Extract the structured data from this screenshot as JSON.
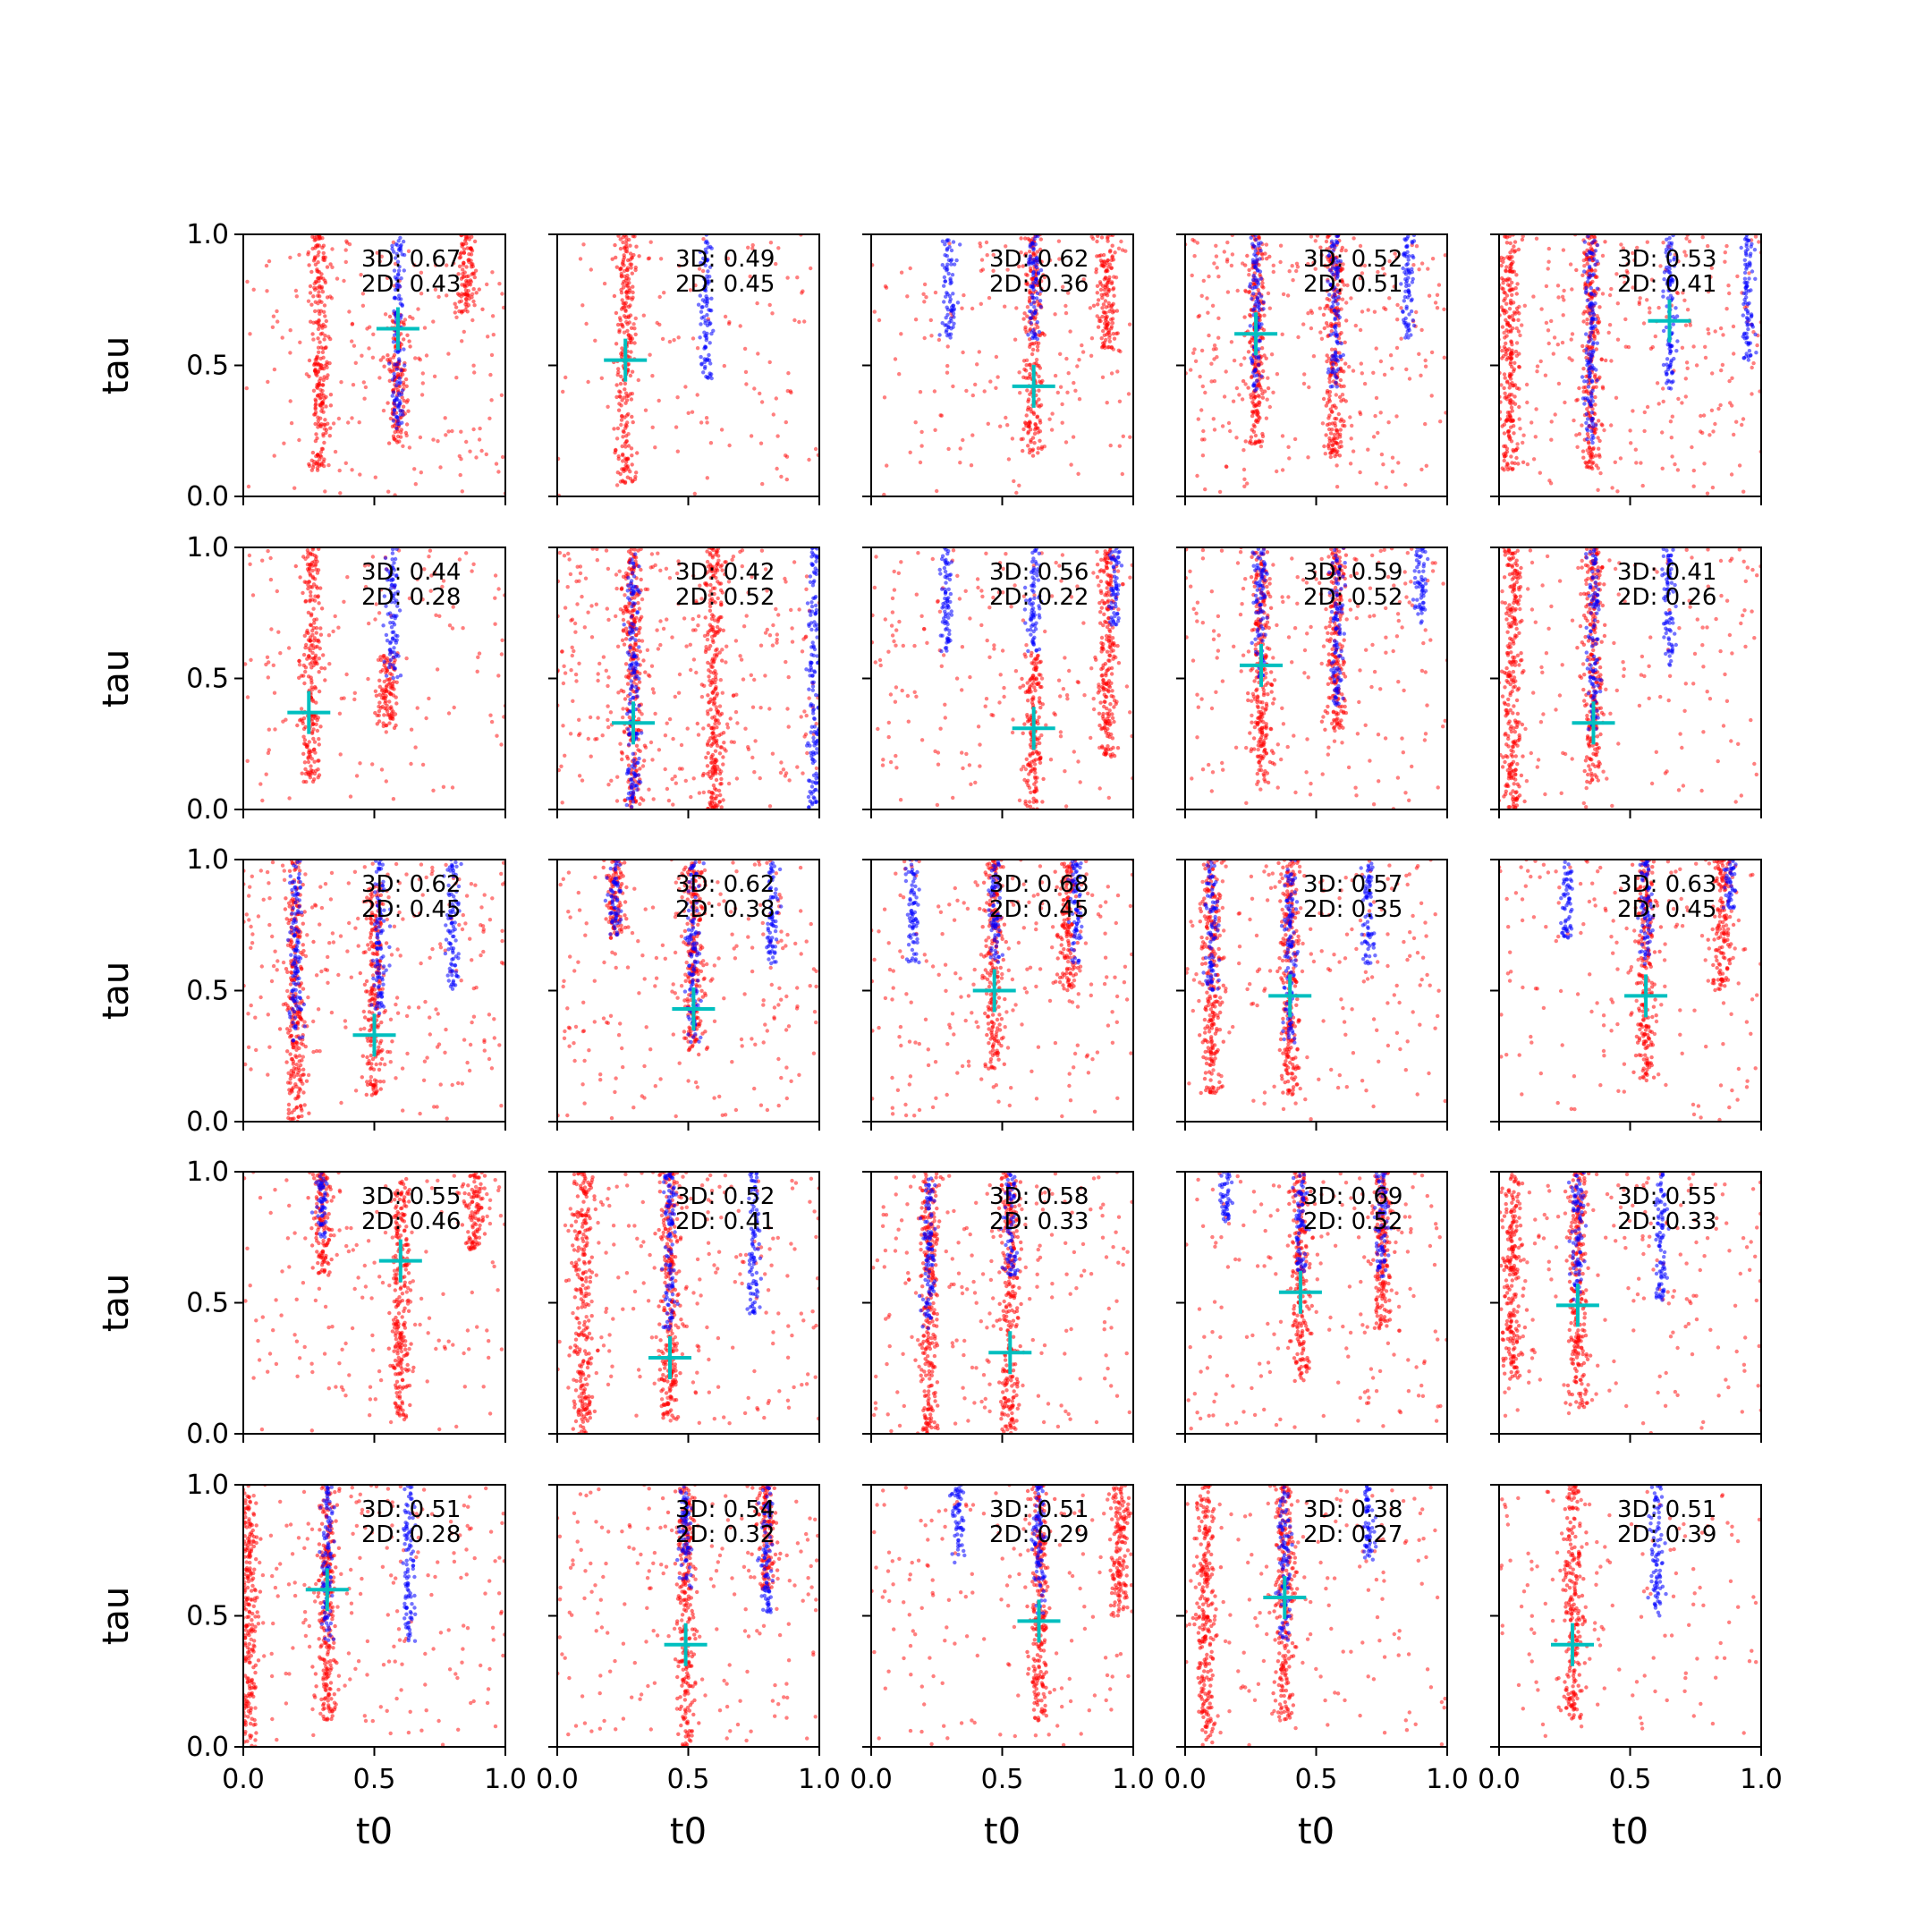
{
  "colors": {
    "background": "#ffffff",
    "axes": "#000000",
    "series_red": "#ff0000",
    "series_blue": "#0000ff",
    "marker": "#00bfbf"
  },
  "chart_data": {
    "type": "scatter",
    "layout": "5x5 grid of small-multiple scatter panels with shared axes",
    "xlabel": "t0",
    "ylabel": "tau",
    "xlim": [
      0,
      1
    ],
    "ylim": [
      0,
      1
    ],
    "xticks": [
      "0.0",
      "0.5",
      "1.0"
    ],
    "yticks": [
      "0.0",
      "0.5",
      "1.0"
    ],
    "grid": false,
    "legend": "none",
    "series_colors": [
      "#ff0000",
      "#0000ff"
    ],
    "marker_color": "#00bfbf",
    "marker_style": "plus",
    "panels": [
      {
        "row": 0,
        "col": 0,
        "score_3d": "3D: 0.67",
        "score_2d": "2D: 0.43",
        "marker": [
          0.59,
          0.64
        ],
        "red_bands": [
          {
            "x": 0.29,
            "ymin": 0.1,
            "ymax": 1.0
          },
          {
            "x": 0.59,
            "ymin": 0.2,
            "ymax": 0.7
          },
          {
            "x": 0.85,
            "ymin": 0.7,
            "ymax": 1.0
          }
        ],
        "blue_bands": [
          {
            "x": 0.59,
            "ymin": 0.25,
            "ymax": 1.0
          }
        ],
        "red_scatter": 0.5
      },
      {
        "row": 0,
        "col": 1,
        "score_3d": "3D: 0.49",
        "score_2d": "2D: 0.45",
        "marker": [
          0.26,
          0.52
        ],
        "red_bands": [
          {
            "x": 0.26,
            "ymin": 0.05,
            "ymax": 1.0
          }
        ],
        "blue_bands": [
          {
            "x": 0.57,
            "ymin": 0.45,
            "ymax": 1.0
          }
        ],
        "red_scatter": 0.25
      },
      {
        "row": 0,
        "col": 2,
        "score_3d": "3D: 0.62",
        "score_2d": "2D: 0.36",
        "marker": [
          0.62,
          0.42
        ],
        "red_bands": [
          {
            "x": 0.62,
            "ymin": 0.15,
            "ymax": 1.0
          },
          {
            "x": 0.9,
            "ymin": 0.55,
            "ymax": 1.0
          }
        ],
        "blue_bands": [
          {
            "x": 0.3,
            "ymin": 0.6,
            "ymax": 1.0
          },
          {
            "x": 0.62,
            "ymin": 0.6,
            "ymax": 1.0
          }
        ],
        "red_scatter": 0.4
      },
      {
        "row": 0,
        "col": 3,
        "score_3d": "3D: 0.52",
        "score_2d": "2D: 0.51",
        "marker": [
          0.27,
          0.62
        ],
        "red_bands": [
          {
            "x": 0.27,
            "ymin": 0.2,
            "ymax": 1.0
          },
          {
            "x": 0.57,
            "ymin": 0.15,
            "ymax": 1.0
          }
        ],
        "blue_bands": [
          {
            "x": 0.27,
            "ymin": 0.4,
            "ymax": 1.0
          },
          {
            "x": 0.57,
            "ymin": 0.4,
            "ymax": 1.0
          },
          {
            "x": 0.85,
            "ymin": 0.6,
            "ymax": 1.0
          }
        ],
        "red_scatter": 0.8
      },
      {
        "row": 0,
        "col": 4,
        "score_3d": "3D: 0.53",
        "score_2d": "2D: 0.41",
        "marker": [
          0.65,
          0.67
        ],
        "red_bands": [
          {
            "x": 0.04,
            "ymin": 0.1,
            "ymax": 1.0
          },
          {
            "x": 0.35,
            "ymin": 0.1,
            "ymax": 1.0
          }
        ],
        "blue_bands": [
          {
            "x": 0.35,
            "ymin": 0.2,
            "ymax": 1.0
          },
          {
            "x": 0.65,
            "ymin": 0.4,
            "ymax": 1.0
          },
          {
            "x": 0.95,
            "ymin": 0.5,
            "ymax": 1.0
          }
        ],
        "red_scatter": 0.8
      },
      {
        "row": 1,
        "col": 0,
        "score_3d": "3D: 0.44",
        "score_2d": "2D: 0.28",
        "marker": [
          0.25,
          0.37
        ],
        "red_bands": [
          {
            "x": 0.26,
            "ymin": 0.1,
            "ymax": 1.0
          },
          {
            "x": 0.55,
            "ymin": 0.3,
            "ymax": 0.6
          }
        ],
        "blue_bands": [
          {
            "x": 0.57,
            "ymin": 0.5,
            "ymax": 1.0
          }
        ],
        "red_scatter": 0.3
      },
      {
        "row": 1,
        "col": 1,
        "score_3d": "3D: 0.42",
        "score_2d": "2D: 0.52",
        "marker": [
          0.29,
          0.33
        ],
        "red_bands": [
          {
            "x": 0.29,
            "ymin": 0.0,
            "ymax": 1.0
          },
          {
            "x": 0.6,
            "ymin": 0.0,
            "ymax": 1.0
          }
        ],
        "blue_bands": [
          {
            "x": 0.29,
            "ymin": 0.0,
            "ymax": 1.0
          },
          {
            "x": 0.98,
            "ymin": 0.0,
            "ymax": 1.0
          }
        ],
        "red_scatter": 1.0
      },
      {
        "row": 1,
        "col": 2,
        "score_3d": "3D: 0.56",
        "score_2d": "2D: 0.22",
        "marker": [
          0.62,
          0.31
        ],
        "red_bands": [
          {
            "x": 0.62,
            "ymin": 0.0,
            "ymax": 0.6
          },
          {
            "x": 0.9,
            "ymin": 0.2,
            "ymax": 1.0
          }
        ],
        "blue_bands": [
          {
            "x": 0.29,
            "ymin": 0.6,
            "ymax": 1.0
          },
          {
            "x": 0.62,
            "ymin": 0.6,
            "ymax": 1.0
          },
          {
            "x": 0.93,
            "ymin": 0.7,
            "ymax": 1.0
          }
        ],
        "red_scatter": 0.5
      },
      {
        "row": 1,
        "col": 3,
        "score_3d": "3D: 0.59",
        "score_2d": "2D: 0.52",
        "marker": [
          0.29,
          0.55
        ],
        "red_bands": [
          {
            "x": 0.29,
            "ymin": 0.1,
            "ymax": 1.0
          },
          {
            "x": 0.58,
            "ymin": 0.3,
            "ymax": 1.0
          }
        ],
        "blue_bands": [
          {
            "x": 0.29,
            "ymin": 0.5,
            "ymax": 1.0
          },
          {
            "x": 0.58,
            "ymin": 0.4,
            "ymax": 1.0
          },
          {
            "x": 0.9,
            "ymin": 0.7,
            "ymax": 1.0
          }
        ],
        "red_scatter": 0.6
      },
      {
        "row": 1,
        "col": 4,
        "score_3d": "3D: 0.41",
        "score_2d": "2D: 0.26",
        "marker": [
          0.36,
          0.33
        ],
        "red_bands": [
          {
            "x": 0.05,
            "ymin": 0.0,
            "ymax": 1.0
          },
          {
            "x": 0.36,
            "ymin": 0.1,
            "ymax": 1.0
          }
        ],
        "blue_bands": [
          {
            "x": 0.36,
            "ymin": 0.3,
            "ymax": 1.0
          },
          {
            "x": 0.65,
            "ymin": 0.55,
            "ymax": 1.0
          }
        ],
        "red_scatter": 0.4
      },
      {
        "row": 2,
        "col": 0,
        "score_3d": "3D: 0.62",
        "score_2d": "2D: 0.45",
        "marker": [
          0.5,
          0.33
        ],
        "red_bands": [
          {
            "x": 0.2,
            "ymin": 0.0,
            "ymax": 1.0
          },
          {
            "x": 0.5,
            "ymin": 0.1,
            "ymax": 0.9
          }
        ],
        "blue_bands": [
          {
            "x": 0.2,
            "ymin": 0.3,
            "ymax": 1.0
          },
          {
            "x": 0.52,
            "ymin": 0.4,
            "ymax": 1.0
          },
          {
            "x": 0.8,
            "ymin": 0.5,
            "ymax": 1.0
          }
        ],
        "red_scatter": 0.7
      },
      {
        "row": 2,
        "col": 1,
        "score_3d": "3D: 0.62",
        "score_2d": "2D: 0.38",
        "marker": [
          0.52,
          0.43
        ],
        "red_bands": [
          {
            "x": 0.52,
            "ymin": 0.25,
            "ymax": 1.0
          },
          {
            "x": 0.22,
            "ymin": 0.7,
            "ymax": 1.0
          }
        ],
        "blue_bands": [
          {
            "x": 0.22,
            "ymin": 0.7,
            "ymax": 1.0
          },
          {
            "x": 0.52,
            "ymin": 0.3,
            "ymax": 1.0
          },
          {
            "x": 0.82,
            "ymin": 0.6,
            "ymax": 1.0
          }
        ],
        "red_scatter": 0.6
      },
      {
        "row": 2,
        "col": 2,
        "score_3d": "3D: 0.68",
        "score_2d": "2D: 0.45",
        "marker": [
          0.47,
          0.5
        ],
        "red_bands": [
          {
            "x": 0.47,
            "ymin": 0.2,
            "ymax": 1.0
          },
          {
            "x": 0.75,
            "ymin": 0.5,
            "ymax": 1.0
          }
        ],
        "blue_bands": [
          {
            "x": 0.16,
            "ymin": 0.6,
            "ymax": 1.0
          },
          {
            "x": 0.47,
            "ymin": 0.6,
            "ymax": 1.0
          },
          {
            "x": 0.78,
            "ymin": 0.6,
            "ymax": 1.0
          }
        ],
        "red_scatter": 0.6
      },
      {
        "row": 2,
        "col": 3,
        "score_3d": "3D: 0.57",
        "score_2d": "2D: 0.35",
        "marker": [
          0.4,
          0.48
        ],
        "red_bands": [
          {
            "x": 0.4,
            "ymin": 0.1,
            "ymax": 1.0
          },
          {
            "x": 0.1,
            "ymin": 0.1,
            "ymax": 1.0
          }
        ],
        "blue_bands": [
          {
            "x": 0.1,
            "ymin": 0.5,
            "ymax": 1.0
          },
          {
            "x": 0.4,
            "ymin": 0.3,
            "ymax": 1.0
          },
          {
            "x": 0.7,
            "ymin": 0.6,
            "ymax": 1.0
          }
        ],
        "red_scatter": 0.5
      },
      {
        "row": 2,
        "col": 4,
        "score_3d": "3D: 0.63",
        "score_2d": "2D: 0.45",
        "marker": [
          0.56,
          0.48
        ],
        "red_bands": [
          {
            "x": 0.56,
            "ymin": 0.15,
            "ymax": 1.0
          },
          {
            "x": 0.85,
            "ymin": 0.5,
            "ymax": 1.0
          }
        ],
        "blue_bands": [
          {
            "x": 0.26,
            "ymin": 0.7,
            "ymax": 1.0
          },
          {
            "x": 0.56,
            "ymin": 0.6,
            "ymax": 1.0
          },
          {
            "x": 0.88,
            "ymin": 0.8,
            "ymax": 1.0
          }
        ],
        "red_scatter": 0.4
      },
      {
        "row": 3,
        "col": 0,
        "score_3d": "3D: 0.55",
        "score_2d": "2D: 0.46",
        "marker": [
          0.6,
          0.66
        ],
        "red_bands": [
          {
            "x": 0.6,
            "ymin": 0.05,
            "ymax": 1.0
          },
          {
            "x": 0.3,
            "ymin": 0.6,
            "ymax": 1.0
          },
          {
            "x": 0.88,
            "ymin": 0.7,
            "ymax": 1.0
          }
        ],
        "blue_bands": [
          {
            "x": 0.3,
            "ymin": 0.75,
            "ymax": 1.0
          }
        ],
        "red_scatter": 0.4
      },
      {
        "row": 3,
        "col": 1,
        "score_3d": "3D: 0.52",
        "score_2d": "2D: 0.41",
        "marker": [
          0.43,
          0.29
        ],
        "red_bands": [
          {
            "x": 0.43,
            "ymin": 0.05,
            "ymax": 1.0
          },
          {
            "x": 0.1,
            "ymin": 0.0,
            "ymax": 1.0
          }
        ],
        "blue_bands": [
          {
            "x": 0.43,
            "ymin": 0.4,
            "ymax": 1.0
          },
          {
            "x": 0.75,
            "ymin": 0.45,
            "ymax": 1.0
          }
        ],
        "red_scatter": 0.6
      },
      {
        "row": 3,
        "col": 2,
        "score_3d": "3D: 0.58",
        "score_2d": "2D: 0.33",
        "marker": [
          0.53,
          0.31
        ],
        "red_bands": [
          {
            "x": 0.53,
            "ymin": 0.0,
            "ymax": 1.0
          },
          {
            "x": 0.22,
            "ymin": 0.0,
            "ymax": 1.0
          }
        ],
        "blue_bands": [
          {
            "x": 0.22,
            "ymin": 0.4,
            "ymax": 1.0
          },
          {
            "x": 0.53,
            "ymin": 0.6,
            "ymax": 1.0
          }
        ],
        "red_scatter": 0.6
      },
      {
        "row": 3,
        "col": 3,
        "score_3d": "3D: 0.69",
        "score_2d": "2D: 0.52",
        "marker": [
          0.44,
          0.54
        ],
        "red_bands": [
          {
            "x": 0.44,
            "ymin": 0.2,
            "ymax": 1.0
          },
          {
            "x": 0.75,
            "ymin": 0.4,
            "ymax": 1.0
          }
        ],
        "blue_bands": [
          {
            "x": 0.44,
            "ymin": 0.6,
            "ymax": 1.0
          },
          {
            "x": 0.75,
            "ymin": 0.6,
            "ymax": 1.0
          },
          {
            "x": 0.15,
            "ymin": 0.8,
            "ymax": 1.0
          }
        ],
        "red_scatter": 0.5
      },
      {
        "row": 3,
        "col": 4,
        "score_3d": "3D: 0.55",
        "score_2d": "2D: 0.33",
        "marker": [
          0.3,
          0.49
        ],
        "red_bands": [
          {
            "x": 0.3,
            "ymin": 0.1,
            "ymax": 1.0
          },
          {
            "x": 0.05,
            "ymin": 0.2,
            "ymax": 1.0
          }
        ],
        "blue_bands": [
          {
            "x": 0.3,
            "ymin": 0.5,
            "ymax": 1.0
          },
          {
            "x": 0.62,
            "ymin": 0.5,
            "ymax": 1.0
          }
        ],
        "red_scatter": 0.5
      },
      {
        "row": 4,
        "col": 0,
        "score_3d": "3D: 0.51",
        "score_2d": "2D: 0.28",
        "marker": [
          0.32,
          0.6
        ],
        "red_bands": [
          {
            "x": 0.32,
            "ymin": 0.1,
            "ymax": 1.0
          },
          {
            "x": 0.02,
            "ymin": 0.0,
            "ymax": 1.0
          }
        ],
        "blue_bands": [
          {
            "x": 0.32,
            "ymin": 0.4,
            "ymax": 1.0
          },
          {
            "x": 0.63,
            "ymin": 0.4,
            "ymax": 1.0
          }
        ],
        "red_scatter": 0.6
      },
      {
        "row": 4,
        "col": 1,
        "score_3d": "3D: 0.54",
        "score_2d": "2D: 0.32",
        "marker": [
          0.49,
          0.39
        ],
        "red_bands": [
          {
            "x": 0.49,
            "ymin": 0.0,
            "ymax": 1.0
          },
          {
            "x": 0.8,
            "ymin": 0.6,
            "ymax": 1.0
          }
        ],
        "blue_bands": [
          {
            "x": 0.8,
            "ymin": 0.5,
            "ymax": 1.0
          },
          {
            "x": 0.49,
            "ymin": 0.6,
            "ymax": 1.0
          }
        ],
        "red_scatter": 0.5
      },
      {
        "row": 4,
        "col": 2,
        "score_3d": "3D: 0.51",
        "score_2d": "2D: 0.29",
        "marker": [
          0.64,
          0.48
        ],
        "red_bands": [
          {
            "x": 0.64,
            "ymin": 0.1,
            "ymax": 1.0
          },
          {
            "x": 0.95,
            "ymin": 0.5,
            "ymax": 1.0
          }
        ],
        "blue_bands": [
          {
            "x": 0.33,
            "ymin": 0.7,
            "ymax": 1.0
          },
          {
            "x": 0.64,
            "ymin": 0.5,
            "ymax": 1.0
          }
        ],
        "red_scatter": 0.4
      },
      {
        "row": 4,
        "col": 3,
        "score_3d": "3D: 0.38",
        "score_2d": "2D: 0.27",
        "marker": [
          0.38,
          0.57
        ],
        "red_bands": [
          {
            "x": 0.38,
            "ymin": 0.1,
            "ymax": 1.0
          },
          {
            "x": 0.08,
            "ymin": 0.0,
            "ymax": 1.0
          }
        ],
        "blue_bands": [
          {
            "x": 0.38,
            "ymin": 0.4,
            "ymax": 1.0
          },
          {
            "x": 0.7,
            "ymin": 0.7,
            "ymax": 1.0
          }
        ],
        "red_scatter": 0.4
      },
      {
        "row": 4,
        "col": 4,
        "score_3d": "3D: 0.51",
        "score_2d": "2D: 0.39",
        "marker": [
          0.28,
          0.39
        ],
        "red_bands": [
          {
            "x": 0.28,
            "ymin": 0.1,
            "ymax": 1.0
          }
        ],
        "blue_bands": [
          {
            "x": 0.6,
            "ymin": 0.5,
            "ymax": 1.0
          }
        ],
        "red_scatter": 0.3
      }
    ]
  }
}
